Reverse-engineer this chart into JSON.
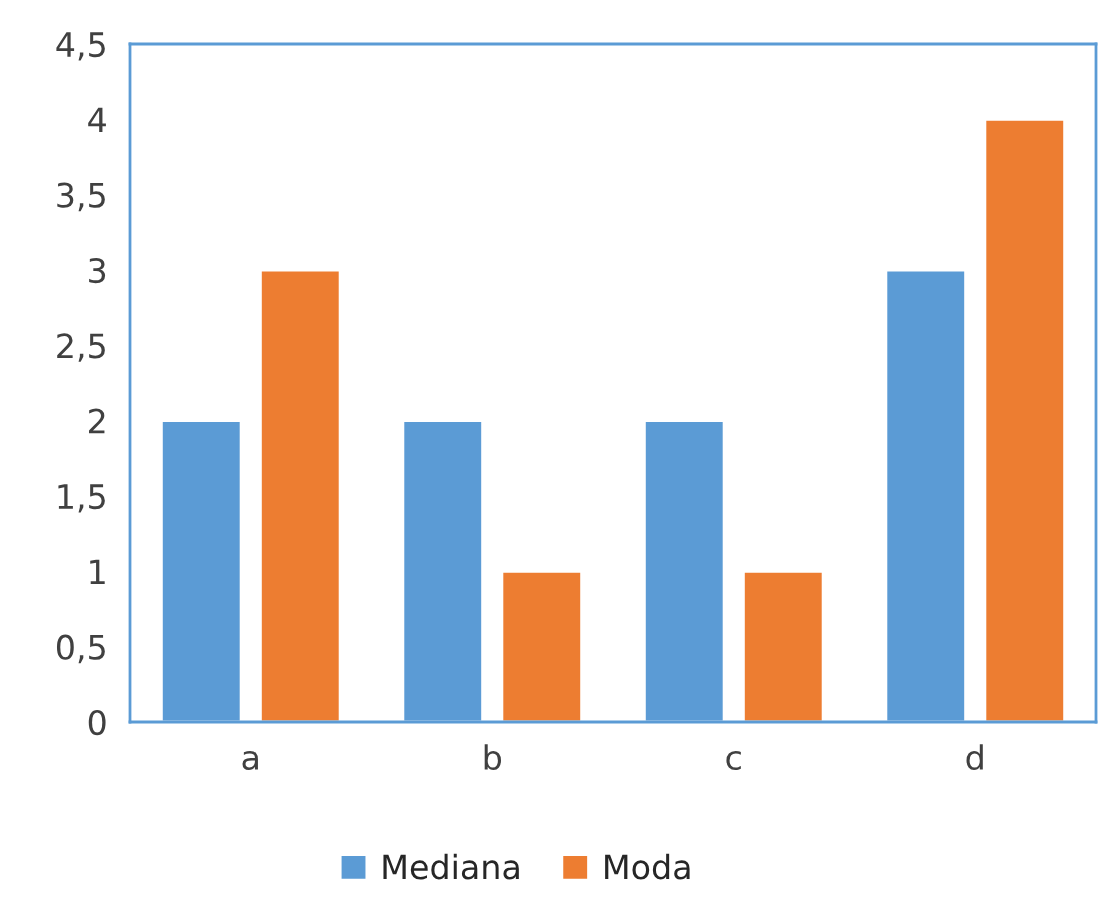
{
  "chart_data": {
    "type": "bar",
    "categories": [
      "a",
      "b",
      "c",
      "d"
    ],
    "series": [
      {
        "name": "Mediana",
        "color": "#5b9bd5",
        "values": [
          2,
          2,
          2,
          3
        ]
      },
      {
        "name": "Moda",
        "color": "#ed7d31",
        "values": [
          3,
          1,
          1,
          4
        ]
      }
    ],
    "ylim": [
      0,
      4.5
    ],
    "yticks": [
      0,
      {
        "value": 0.5,
        "label": "0,5"
      },
      1,
      {
        "value": 1.5,
        "label": "1,5"
      },
      2,
      {
        "value": 2.5,
        "label": "2,5"
      },
      3,
      {
        "value": 3.5,
        "label": "3,5"
      },
      4,
      {
        "value": 4.5,
        "label": "4,5"
      }
    ],
    "grid": false,
    "legend": "bottom"
  }
}
